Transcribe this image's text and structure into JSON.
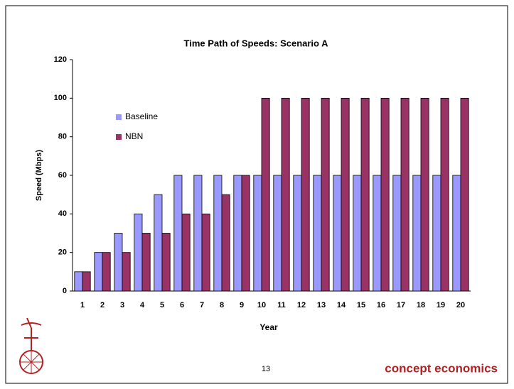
{
  "chart_data": {
    "type": "bar",
    "title": "Time Path of Speeds: Scenario A",
    "x_label": "Year",
    "y_label": "Speed (Mbps)",
    "categories": [
      "1",
      "2",
      "3",
      "4",
      "5",
      "6",
      "7",
      "8",
      "9",
      "10",
      "11",
      "12",
      "13",
      "14",
      "15",
      "16",
      "17",
      "18",
      "19",
      "20"
    ],
    "series": [
      {
        "name": "Baseline",
        "color": "#9999ff",
        "values": [
          10,
          20,
          30,
          40,
          50,
          60,
          60,
          60,
          60,
          60,
          60,
          60,
          60,
          60,
          60,
          60,
          60,
          60,
          60,
          60
        ]
      },
      {
        "name": "NBN",
        "color": "#993366",
        "values": [
          10,
          20,
          20,
          30,
          30,
          40,
          40,
          50,
          60,
          100,
          100,
          100,
          100,
          100,
          100,
          100,
          100,
          100,
          100,
          100
        ]
      }
    ],
    "ylim": [
      0,
      120
    ],
    "yticks": [
      0,
      20,
      40,
      60,
      80,
      100,
      120
    ],
    "grid": false
  },
  "footer": {
    "page_number": "13",
    "brand": "concept economics"
  }
}
